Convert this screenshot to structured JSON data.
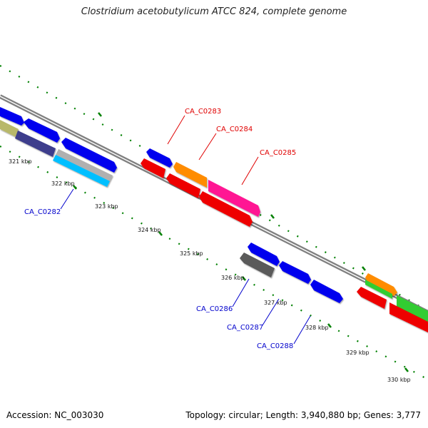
{
  "title": "Clostridium acetobutylicum ATCC 824, complete genome",
  "accession": "Accession: NC_003030",
  "topology": "Topology: circular; Length: 3,940,880 bp; Genes: 3,777",
  "kbp_labels": [
    "321 kbp",
    "322 kbp",
    "323 kbp",
    "324 kbp",
    "325 kbp",
    "326 kbp",
    "327 kbp",
    "328 kbp",
    "329 kbp",
    "330 kbp"
  ],
  "gene_labels": {
    "ca0283": "CA_C0283",
    "ca0284": "CA_C0284",
    "ca0285": "CA_C0285",
    "ca0282": "CA_C0282",
    "ca0286": "CA_C0286",
    "ca0287": "CA_C0287",
    "ca0288": "CA_C0288"
  },
  "colors": {
    "backbone": "#808080",
    "tick": "#008000",
    "red_label": "#e00000",
    "blue_label": "#0000cc",
    "gene_blue": "#0000ee",
    "gene_red": "#ee0000",
    "gene_orange": "#ff8c00",
    "gene_magenta": "#ff1493",
    "gene_green": "#33cc33",
    "gene_cyan": "#00bfff",
    "gene_gray": "#5a5a5a",
    "gene_navy": "#3c3c8c",
    "gene_olive": "#b8b86a"
  }
}
